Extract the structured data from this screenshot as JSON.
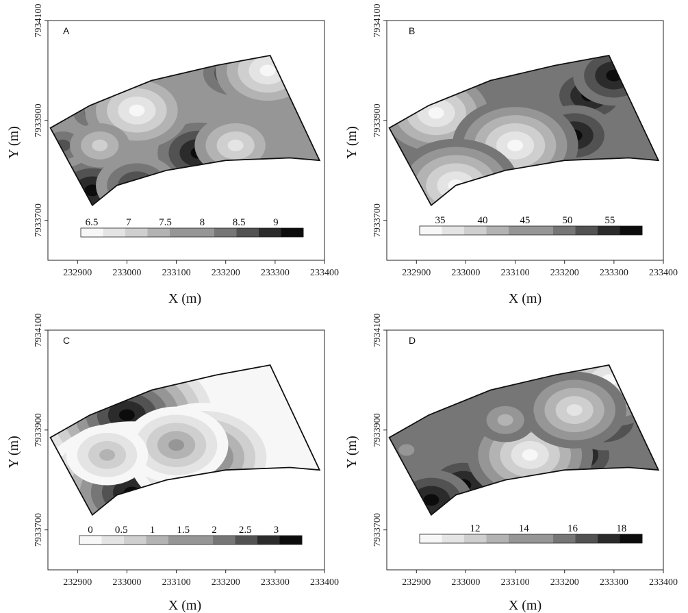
{
  "chart_data": [
    {
      "type": "heatmap",
      "panel_label": "A",
      "xlabel": "X (m)",
      "ylabel": "Y (m)",
      "xlim": [
        232840,
        233400
      ],
      "ylim": [
        7933620,
        7934100
      ],
      "x_ticks": [
        "232900",
        "233000",
        "233100",
        "233200",
        "233300",
        "233400"
      ],
      "y_ticks": [
        "7933700",
        "7933900",
        "7934100"
      ],
      "colorbar_labels": [
        "6.5",
        "7",
        "7.5",
        "8",
        "8.5",
        "9"
      ],
      "colorbar_levels": [
        6.5,
        7,
        7.5,
        8,
        8.5,
        9
      ],
      "boundary": [
        [
          232845,
          7933885
        ],
        [
          232925,
          7933930
        ],
        [
          233050,
          7933980
        ],
        [
          233180,
          7934010
        ],
        [
          233290,
          7934030
        ],
        [
          233390,
          7933820
        ],
        [
          233330,
          7933825
        ],
        [
          233200,
          7933820
        ],
        [
          233080,
          7933800
        ],
        [
          232980,
          7933770
        ],
        [
          232930,
          7933730
        ]
      ],
      "hotspots": [
        {
          "x": 233145,
          "y": 7933835,
          "value": 9.2
        },
        {
          "x": 232930,
          "y": 7933760,
          "value": 8.9
        },
        {
          "x": 233020,
          "y": 7933770,
          "value": 8.6
        },
        {
          "x": 232870,
          "y": 7933850,
          "value": 8.2
        },
        {
          "x": 232930,
          "y": 7933915,
          "value": 8.3
        },
        {
          "x": 233215,
          "y": 7933995,
          "value": 8.6
        },
        {
          "x": 233020,
          "y": 7933920,
          "value": 6.4
        },
        {
          "x": 233285,
          "y": 7934000,
          "value": 6.6
        },
        {
          "x": 233220,
          "y": 7933850,
          "value": 6.9
        },
        {
          "x": 232945,
          "y": 7933850,
          "value": 7.1
        }
      ]
    },
    {
      "type": "heatmap",
      "panel_label": "B",
      "xlabel": "X (m)",
      "ylabel": "Y (m)",
      "xlim": [
        232840,
        233400
      ],
      "ylim": [
        7933620,
        7934100
      ],
      "x_ticks": [
        "232900",
        "233000",
        "233100",
        "233200",
        "233300",
        "233400"
      ],
      "y_ticks": [
        "7933700",
        "7933900",
        "7934100"
      ],
      "colorbar_labels": [
        "35",
        "40",
        "45",
        "50",
        "55"
      ],
      "colorbar_levels": [
        32.5,
        35,
        40,
        45,
        50,
        55
      ],
      "boundary": [
        [
          232845,
          7933885
        ],
        [
          232925,
          7933930
        ],
        [
          233050,
          7933980
        ],
        [
          233180,
          7934010
        ],
        [
          233290,
          7934030
        ],
        [
          233390,
          7933820
        ],
        [
          233330,
          7933825
        ],
        [
          233200,
          7933820
        ],
        [
          233080,
          7933800
        ],
        [
          232980,
          7933770
        ],
        [
          232930,
          7933730
        ]
      ],
      "hotspots": [
        {
          "x": 233250,
          "y": 7933950,
          "value": 58
        },
        {
          "x": 233220,
          "y": 7933870,
          "value": 57
        },
        {
          "x": 233300,
          "y": 7933990,
          "value": 56
        },
        {
          "x": 232865,
          "y": 7933850,
          "value": 48
        },
        {
          "x": 232930,
          "y": 7933850,
          "value": 47
        },
        {
          "x": 232990,
          "y": 7933910,
          "value": 45
        },
        {
          "x": 232940,
          "y": 7933915,
          "value": 33
        },
        {
          "x": 233100,
          "y": 7933850,
          "value": 33
        },
        {
          "x": 232980,
          "y": 7933770,
          "value": 33
        }
      ]
    },
    {
      "type": "heatmap",
      "panel_label": "C",
      "xlabel": "X (m)",
      "ylabel": "Y (m)",
      "xlim": [
        232840,
        233400
      ],
      "ylim": [
        7933620,
        7934100
      ],
      "x_ticks": [
        "232900",
        "233000",
        "233100",
        "233200",
        "233300",
        "233400"
      ],
      "y_ticks": [
        "7933700",
        "7933900",
        "7934100"
      ],
      "colorbar_labels": [
        "0",
        "0.5",
        "1",
        "1.5",
        "2",
        "2.5",
        "3"
      ],
      "colorbar_levels": [
        0,
        0.5,
        1,
        1.5,
        2,
        2.5,
        3
      ],
      "boundary": [
        [
          232845,
          7933885
        ],
        [
          232925,
          7933930
        ],
        [
          233050,
          7933980
        ],
        [
          233180,
          7934010
        ],
        [
          233290,
          7934030
        ],
        [
          233390,
          7933820
        ],
        [
          233330,
          7933825
        ],
        [
          233200,
          7933820
        ],
        [
          233080,
          7933800
        ],
        [
          232980,
          7933770
        ],
        [
          232930,
          7933730
        ]
      ],
      "hotspots": [
        {
          "x": 233000,
          "y": 7933930,
          "value": 3.4
        },
        {
          "x": 233010,
          "y": 7933775,
          "value": 3.3
        },
        {
          "x": 233155,
          "y": 7933845,
          "value": 2.0
        },
        {
          "x": 233100,
          "y": 7933870,
          "value": 1.4
        },
        {
          "x": 232960,
          "y": 7933850,
          "value": 1.2
        }
      ]
    },
    {
      "type": "heatmap",
      "panel_label": "D",
      "xlabel": "X (m)",
      "ylabel": "Y (m)",
      "xlim": [
        232840,
        233400
      ],
      "ylim": [
        7933620,
        7934100
      ],
      "x_ticks": [
        "232900",
        "233000",
        "233100",
        "233200",
        "233300",
        "233400"
      ],
      "y_ticks": [
        "7933700",
        "7933900",
        "7934100"
      ],
      "colorbar_labels": [
        "12",
        "14",
        "16",
        "18"
      ],
      "colorbar_levels": [
        8,
        10,
        12,
        14,
        16,
        18
      ],
      "boundary": [
        [
          232845,
          7933885
        ],
        [
          232925,
          7933930
        ],
        [
          233050,
          7933980
        ],
        [
          233180,
          7934010
        ],
        [
          233290,
          7934030
        ],
        [
          233390,
          7933820
        ],
        [
          233330,
          7933825
        ],
        [
          233200,
          7933820
        ],
        [
          233080,
          7933800
        ],
        [
          232980,
          7933770
        ],
        [
          232930,
          7933730
        ]
      ],
      "hotspots": [
        {
          "x": 232995,
          "y": 7933790,
          "value": 20
        },
        {
          "x": 233230,
          "y": 7933850,
          "value": 19.5
        },
        {
          "x": 233280,
          "y": 7933920,
          "value": 18.5
        },
        {
          "x": 232930,
          "y": 7933760,
          "value": 17
        },
        {
          "x": 232880,
          "y": 7933860,
          "value": 13.5
        },
        {
          "x": 233220,
          "y": 7933990,
          "value": 14
        },
        {
          "x": 233130,
          "y": 7933850,
          "value": 8.5
        },
        {
          "x": 233290,
          "y": 7934000,
          "value": 9
        },
        {
          "x": 233220,
          "y": 7933940,
          "value": 9.5
        },
        {
          "x": 233080,
          "y": 7933920,
          "value": 12
        }
      ]
    }
  ]
}
